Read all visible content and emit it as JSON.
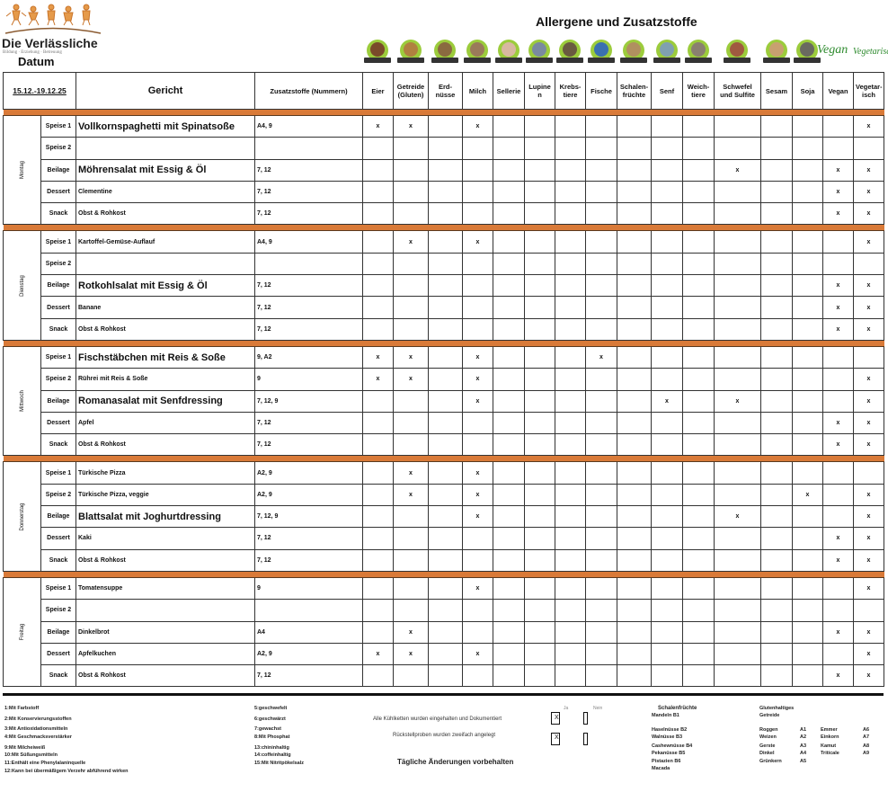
{
  "header": {
    "brand": "Die Verlässliche",
    "brand_sub": "Bildung · Erziehung · Betreuung",
    "datum_label": "Datum",
    "title": "Allergene und Zusatzstoffe",
    "vegan_logo": "Vegan",
    "vegetarisch_logo": "Vegetarisch"
  },
  "allergen_icons": [
    "eggs-icon",
    "cereals-icon",
    "peanuts-icon",
    "milk-icon",
    "celery-icon",
    "lupin-icon",
    "crustaceans-icon",
    "fish-icon",
    "nuts-icon",
    "mustard-icon",
    "molluscs-icon",
    "sulphites-icon",
    "sesame-icon",
    "soy-icon"
  ],
  "table": {
    "date_range": "15.12.-19.12.25",
    "col_dish": "Gericht",
    "col_additives": "Zusatzstoffe (Nummern)",
    "allergen_cols": [
      "Eier",
      "Getreide (Gluten)",
      "Erd-nüsse",
      "Milch",
      "Sellerie",
      "Lupine n",
      "Krebs-tiere",
      "Fische",
      "Schalen-früchte",
      "Senf",
      "Weich-tiere",
      "Schwefel und Sulfite",
      "Sesam",
      "Soja",
      "Vegan",
      "Vegetar-isch"
    ],
    "mark": "x",
    "days": [
      {
        "day": "Montag",
        "rows": [
          {
            "type": "Speise 1",
            "dish": "Vollkornspaghetti mit Spinatsoße",
            "additives": "A4, 9",
            "marks": [
              0,
              1,
              3,
              15
            ]
          },
          {
            "type": "Speise 2",
            "dish": "",
            "additives": "",
            "marks": []
          },
          {
            "type": "Beilage",
            "dish": "Möhrensalat mit Essig & Öl",
            "additives": "7, 12",
            "marks": [
              11,
              14,
              15
            ]
          },
          {
            "type": "Dessert",
            "dish": "Clementine",
            "additives": "7, 12",
            "marks": [
              14,
              15
            ]
          },
          {
            "type": "Snack",
            "dish": "Obst & Rohkost",
            "additives": "7, 12",
            "marks": [
              14,
              15
            ]
          }
        ]
      },
      {
        "day": "Dienstag",
        "rows": [
          {
            "type": "Speise 1",
            "dish": "Kartoffel-Gemüse-Auflauf",
            "additives": "A4, 9",
            "marks": [
              1,
              3,
              15
            ]
          },
          {
            "type": "Speise 2",
            "dish": "",
            "additives": "",
            "marks": []
          },
          {
            "type": "Beilage",
            "dish": "Rotkohlsalat mit Essig & Öl",
            "additives": "7, 12",
            "marks": [
              14,
              15
            ]
          },
          {
            "type": "Dessert",
            "dish": "Banane",
            "additives": "7, 12",
            "marks": [
              14,
              15
            ]
          },
          {
            "type": "Snack",
            "dish": "Obst & Rohkost",
            "additives": "7, 12",
            "marks": [
              14,
              15
            ]
          }
        ]
      },
      {
        "day": "Mittwoch",
        "rows": [
          {
            "type": "Speise 1",
            "dish": "Fischstäbchen mit Reis & Soße",
            "additives": "9, A2",
            "marks": [
              0,
              1,
              3,
              7
            ]
          },
          {
            "type": "Speise 2",
            "dish": "Rührei mit Reis & Soße",
            "additives": "9",
            "marks": [
              0,
              1,
              3,
              15
            ]
          },
          {
            "type": "Beilage",
            "dish": "Romanasalat mit Senfdressing",
            "additives": "7, 12, 9",
            "marks": [
              3,
              9,
              11,
              15
            ]
          },
          {
            "type": "Dessert",
            "dish": "Apfel",
            "additives": "7, 12",
            "marks": [
              14,
              15
            ]
          },
          {
            "type": "Snack",
            "dish": "Obst & Rohkost",
            "additives": "7, 12",
            "marks": [
              14,
              15
            ]
          }
        ]
      },
      {
        "day": "Donnerstag",
        "rows": [
          {
            "type": "Speise 1",
            "dish": "Türkische Pizza",
            "additives": "A2, 9",
            "marks": [
              1,
              3
            ]
          },
          {
            "type": "Speise 2",
            "dish": "Türkische Pizza, veggie",
            "additives": "A2, 9",
            "marks": [
              1,
              3,
              13,
              15
            ]
          },
          {
            "type": "Beilage",
            "dish": "Blattsalat mit Joghurtdressing",
            "additives": "7, 12, 9",
            "marks": [
              3,
              11,
              15
            ]
          },
          {
            "type": "Dessert",
            "dish": "Kaki",
            "additives": "7, 12",
            "marks": [
              14,
              15
            ]
          },
          {
            "type": "Snack",
            "dish": "Obst & Rohkost",
            "additives": "7, 12",
            "marks": [
              14,
              15
            ]
          }
        ]
      },
      {
        "day": "Freitag",
        "rows": [
          {
            "type": "Speise 1",
            "dish": "Tomatensuppe",
            "additives": "9",
            "marks": [
              3,
              15
            ]
          },
          {
            "type": "Speise 2",
            "dish": "",
            "additives": "",
            "marks": []
          },
          {
            "type": "Beilage",
            "dish": "Dinkelbrot",
            "additives": "A4",
            "marks": [
              1,
              14,
              15
            ]
          },
          {
            "type": "Dessert",
            "dish": "Apfelkuchen",
            "additives": "A2, 9",
            "marks": [
              0,
              1,
              3,
              15
            ]
          },
          {
            "type": "Snack",
            "dish": "Obst & Rohkost",
            "additives": "7, 12",
            "marks": [
              14,
              15
            ]
          }
        ]
      }
    ]
  },
  "footer": {
    "additives_left": [
      "1:Mit Farbstoff",
      "2:Mit Konservierungsstoffen",
      "3:Mit Antioxidationsmitteln",
      "4:Mit Geschmacksverstärker",
      "9:Mit Milcheiweiß",
      "10:Mit Süßungsmitteln",
      "11:Enthält eine Phenylalaninquelle",
      "12:Kann bei übermäßigem Verzehr abführend wirken"
    ],
    "additives_right": [
      "5:geschwefelt",
      "6:geschwärzt",
      "7:gewachst",
      "8:Mit Phosphat",
      "13:chininhaltig",
      "14:coffeinhaltig",
      "15:Mit Nitritpökelsalz"
    ],
    "check_ja": "Ja",
    "check_nein": "Nein",
    "check1_label": "Alle Kühlketten wurden eingehalten und Dokumentiert",
    "check1_ja": "X",
    "check2_label": "Rückstellproben wurden zweifach angelegt",
    "check2_ja": "X",
    "notice": "Tägliche Änderungen vorbehalten",
    "nuts_title": "Schalenfrüchte",
    "nuts": [
      "Mandeln B1",
      "Haselnüsse B2",
      "Walnüsse B3",
      "Cashewnüsse B4",
      "Pekanüsse B5",
      "Pistazien B6",
      "Macada"
    ],
    "gluten_title1": "Glutenhaltiges",
    "gluten_title2": "Getreide",
    "gluten": [
      [
        "Roggen",
        "A1"
      ],
      [
        "Weizen",
        "A2"
      ],
      [
        "Gerste",
        "A3"
      ],
      [
        "Dinkel",
        "A4"
      ],
      [
        "Grünkern",
        "A5"
      ],
      [
        "Emmer",
        "A6"
      ],
      [
        "Einkorn",
        "A7"
      ],
      [
        "Kamut",
        "A8"
      ],
      [
        "Triticale",
        "A9"
      ]
    ]
  }
}
